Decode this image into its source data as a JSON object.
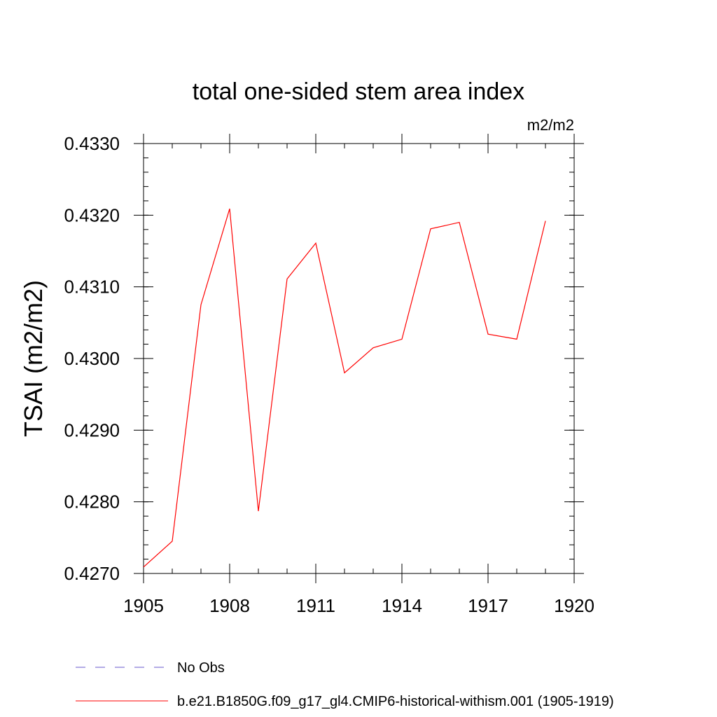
{
  "chart_data": {
    "type": "line",
    "title": "total one-sided stem area index",
    "units_label": "m2/m2",
    "ylabel": "TSAI  (m2/m2)",
    "xlabel": "",
    "xlim": [
      1905,
      1920
    ],
    "ylim": [
      0.427,
      0.433
    ],
    "x_ticks": [
      1905,
      1908,
      1911,
      1914,
      1917,
      1920
    ],
    "x_tick_labels": [
      "1905",
      "1908",
      "1911",
      "1914",
      "1917",
      "1920"
    ],
    "y_ticks": [
      0.427,
      0.428,
      0.429,
      0.43,
      0.431,
      0.432,
      0.433
    ],
    "y_tick_labels": [
      "0.4270",
      "0.4280",
      "0.4290",
      "0.4300",
      "0.4310",
      "0.4320",
      "0.4330"
    ],
    "x_minor_step": 1,
    "y_minor_step": 0.0002,
    "grid": false,
    "legend_position": "bottom",
    "series": [
      {
        "name": "b.e21.B1850G.f09_g17_gl4.CMIP6-historical-withism.001 (1905-1919)",
        "color": "#ff0000",
        "style": "solid",
        "x": [
          1905,
          1906,
          1907,
          1908,
          1909,
          1910,
          1911,
          1912,
          1913,
          1914,
          1915,
          1916,
          1917,
          1918,
          1919
        ],
        "values": [
          0.42709,
          0.42745,
          0.43075,
          0.43209,
          0.42787,
          0.43111,
          0.43161,
          0.4298,
          0.43015,
          0.43027,
          0.43181,
          0.4319,
          0.43034,
          0.43027,
          0.43192
        ]
      }
    ],
    "legend": [
      {
        "label": "No Obs",
        "color": "#6a5acd",
        "style": "dashed"
      },
      {
        "label": "b.e21.B1850G.f09_g17_gl4.CMIP6-historical-withism.001 (1905-1919)",
        "color": "#ff0000",
        "style": "solid"
      }
    ]
  }
}
